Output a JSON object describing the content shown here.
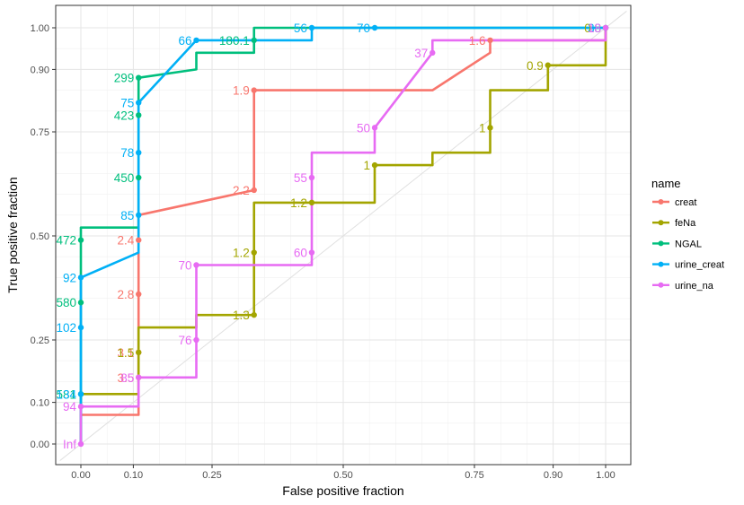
{
  "chart_data": {
    "type": "line",
    "xlabel": "False positive fraction",
    "ylabel": "True positive fraction",
    "xlim": [
      -0.04,
      1.04
    ],
    "ylim": [
      -0.05,
      1.05
    ],
    "x_ticks": [
      {
        "value": 0.0,
        "label": "0.00"
      },
      {
        "value": 0.1,
        "label": "0.10"
      },
      {
        "value": 0.25,
        "label": "0.25"
      },
      {
        "value": 0.5,
        "label": "0.50"
      },
      {
        "value": 0.75,
        "label": "0.75"
      },
      {
        "value": 0.9,
        "label": "0.90"
      },
      {
        "value": 1.0,
        "label": "1.00"
      }
    ],
    "y_ticks": [
      {
        "value": 0.0,
        "label": "0.00"
      },
      {
        "value": 0.1,
        "label": "0.10"
      },
      {
        "value": 0.25,
        "label": "0.25"
      },
      {
        "value": 0.5,
        "label": "0.50"
      },
      {
        "value": 0.75,
        "label": "0.75"
      },
      {
        "value": 0.9,
        "label": "0.90"
      },
      {
        "value": 1.0,
        "label": "1.00"
      }
    ],
    "legend_title": "name",
    "legend_position": "right",
    "grid": true,
    "diagonal_reference": true,
    "series": [
      {
        "name": "creat",
        "color": "#F8766D",
        "step": [
          [
            0,
            0
          ],
          [
            0,
            0.07
          ],
          [
            0.11,
            0.07
          ],
          [
            0.11,
            0.55
          ],
          [
            0.33,
            0.61
          ],
          [
            0.33,
            0.85
          ],
          [
            0.67,
            0.85
          ],
          [
            0.78,
            0.94
          ],
          [
            0.78,
            0.97
          ],
          [
            1,
            0.97
          ],
          [
            1,
            1
          ]
        ],
        "points": [
          {
            "x": 0.11,
            "y": 0.49,
            "label": "2.4"
          },
          {
            "x": 0.11,
            "y": 0.36,
            "label": "2.8"
          },
          {
            "x": 0.11,
            "y": 0.22,
            "label": "3.1"
          },
          {
            "x": 0.11,
            "y": 0.16,
            "label": "3.5"
          },
          {
            "x": 0.33,
            "y": 0.61,
            "label": "2.2"
          },
          {
            "x": 0.33,
            "y": 0.85,
            "label": "1.9"
          },
          {
            "x": 0.78,
            "y": 0.97,
            "label": "1.6"
          }
        ]
      },
      {
        "name": "feNa",
        "color": "#A3A500",
        "step": [
          [
            0,
            0
          ],
          [
            0,
            0.12
          ],
          [
            0.11,
            0.12
          ],
          [
            0.11,
            0.28
          ],
          [
            0.22,
            0.28
          ],
          [
            0.22,
            0.31
          ],
          [
            0.33,
            0.31
          ],
          [
            0.33,
            0.58
          ],
          [
            0.56,
            0.58
          ],
          [
            0.56,
            0.67
          ],
          [
            0.67,
            0.67
          ],
          [
            0.67,
            0.7
          ],
          [
            0.78,
            0.7
          ],
          [
            0.78,
            0.85
          ],
          [
            0.89,
            0.85
          ],
          [
            0.89,
            0.91
          ],
          [
            1,
            0.91
          ],
          [
            1,
            1
          ]
        ],
        "points": [
          {
            "x": 0.11,
            "y": 0.22,
            "label": "1.5"
          },
          {
            "x": 0.33,
            "y": 0.31,
            "label": "1.3"
          },
          {
            "x": 0.33,
            "y": 0.46,
            "label": "1.2"
          },
          {
            "x": 0.44,
            "y": 0.58,
            "label": "1.2"
          },
          {
            "x": 0.56,
            "y": 0.67,
            "label": "1"
          },
          {
            "x": 0.78,
            "y": 0.76,
            "label": "1"
          },
          {
            "x": 0.89,
            "y": 0.91,
            "label": "0.9"
          },
          {
            "x": 1.0,
            "y": 1.0,
            "label": "0.8"
          }
        ]
      },
      {
        "name": "NGAL",
        "color": "#00BF7D",
        "step": [
          [
            0,
            0
          ],
          [
            0,
            0.52
          ],
          [
            0.11,
            0.52
          ],
          [
            0.11,
            0.88
          ],
          [
            0.22,
            0.9
          ],
          [
            0.22,
            0.94
          ],
          [
            0.33,
            0.94
          ],
          [
            0.33,
            1
          ],
          [
            1,
            1
          ]
        ],
        "points": [
          {
            "x": 0.0,
            "y": 0.12,
            "label": "581"
          },
          {
            "x": 0.0,
            "y": 0.34,
            "label": "580"
          },
          {
            "x": 0.0,
            "y": 0.49,
            "label": "472"
          },
          {
            "x": 0.11,
            "y": 0.64,
            "label": "450"
          },
          {
            "x": 0.11,
            "y": 0.79,
            "label": "423"
          },
          {
            "x": 0.11,
            "y": 0.88,
            "label": "299"
          },
          {
            "x": 0.33,
            "y": 0.97,
            "label": "180.1"
          }
        ]
      },
      {
        "name": "urine_creat",
        "color": "#00B0F6",
        "step": [
          [
            0,
            0
          ],
          [
            0,
            0.4
          ],
          [
            0.11,
            0.46
          ],
          [
            0.11,
            0.82
          ],
          [
            0.22,
            0.97
          ],
          [
            0.44,
            0.97
          ],
          [
            0.44,
            1
          ],
          [
            1,
            1
          ]
        ],
        "points": [
          {
            "x": 0.0,
            "y": 0.12,
            "label": "134"
          },
          {
            "x": 0.0,
            "y": 0.28,
            "label": "102"
          },
          {
            "x": 0.0,
            "y": 0.4,
            "label": "92"
          },
          {
            "x": 0.11,
            "y": 0.55,
            "label": "85"
          },
          {
            "x": 0.11,
            "y": 0.7,
            "label": "78"
          },
          {
            "x": 0.11,
            "y": 0.82,
            "label": "75"
          },
          {
            "x": 0.22,
            "y": 0.97,
            "label": "66"
          },
          {
            "x": 0.44,
            "y": 1.0,
            "label": "56"
          },
          {
            "x": 0.56,
            "y": 1.0,
            "label": "70"
          },
          {
            "x": 1.0,
            "y": 1.0,
            "label": "38"
          }
        ]
      },
      {
        "name": "urine_na",
        "color": "#E76BF3",
        "step": [
          [
            0,
            0
          ],
          [
            0,
            0.09
          ],
          [
            0.11,
            0.09
          ],
          [
            0.11,
            0.16
          ],
          [
            0.22,
            0.16
          ],
          [
            0.22,
            0.43
          ],
          [
            0.44,
            0.43
          ],
          [
            0.44,
            0.7
          ],
          [
            0.56,
            0.7
          ],
          [
            0.56,
            0.76
          ],
          [
            0.67,
            0.94
          ],
          [
            0.67,
            0.97
          ],
          [
            1,
            0.97
          ],
          [
            1,
            1
          ]
        ],
        "points": [
          {
            "x": 0.0,
            "y": 0.0,
            "label": "Inf"
          },
          {
            "x": 0.0,
            "y": 0.09,
            "label": "94"
          },
          {
            "x": 0.11,
            "y": 0.16,
            "label": "85"
          },
          {
            "x": 0.22,
            "y": 0.25,
            "label": "76"
          },
          {
            "x": 0.22,
            "y": 0.43,
            "label": "70"
          },
          {
            "x": 0.44,
            "y": 0.46,
            "label": "60"
          },
          {
            "x": 0.44,
            "y": 0.64,
            "label": "55"
          },
          {
            "x": 0.56,
            "y": 0.76,
            "label": "50"
          },
          {
            "x": 0.67,
            "y": 0.94,
            "label": "37"
          },
          {
            "x": 1.0,
            "y": 1.0,
            "label": "18"
          }
        ]
      }
    ]
  }
}
